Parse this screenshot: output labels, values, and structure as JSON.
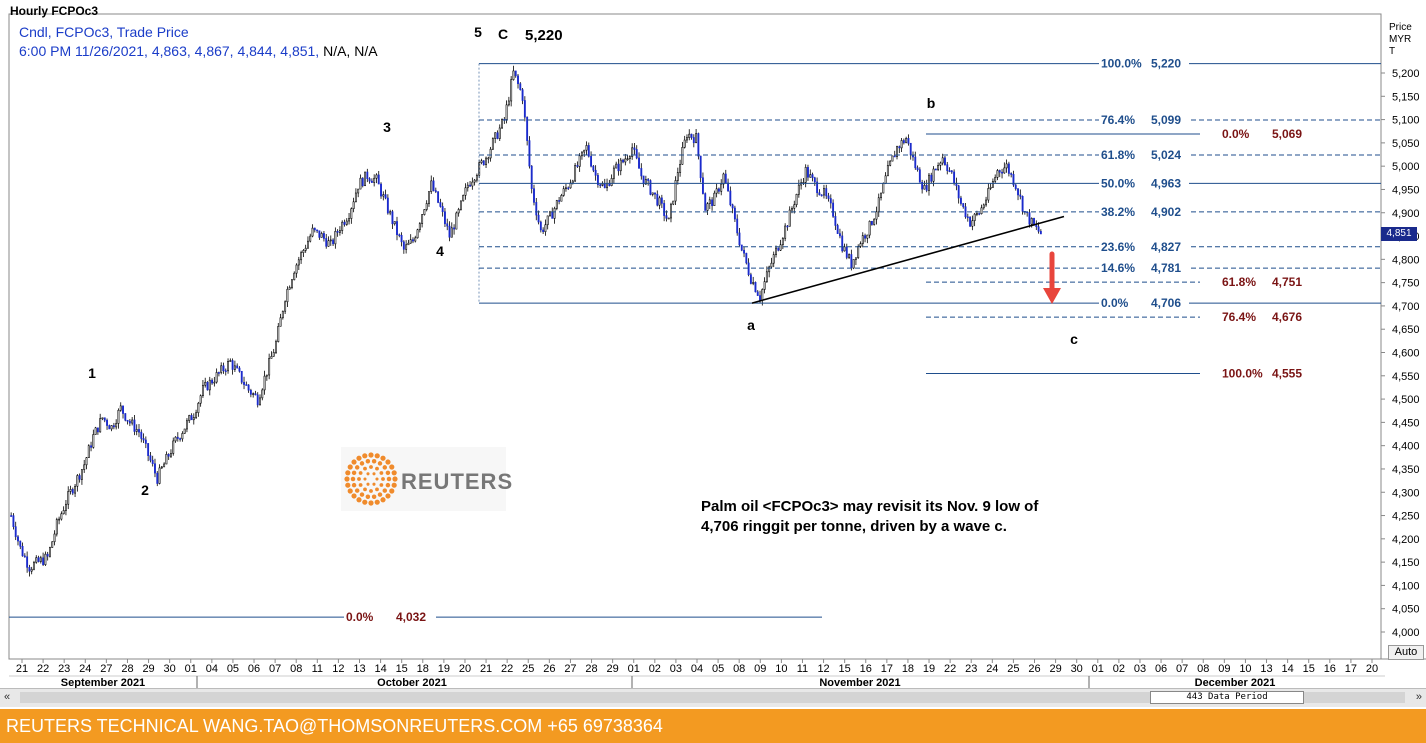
{
  "header": {
    "title": "Hourly FCPOc3",
    "series_label": "Cndl, FCPOc3, Trade Price",
    "ohlc_line": "6:00 PM 11/26/2021, 4,863, 4,867, 4,844, 4,851,",
    "na_values": "N/A, N/A"
  },
  "price_axis": {
    "title_line1": "Price",
    "title_line2": "MYR",
    "title_line3": "T",
    "last_value": "4,851",
    "auto_label": "Auto"
  },
  "scrollbar": {
    "left_arrow": "«",
    "right_arrow": "»",
    "data_period": "443 Data Period"
  },
  "watermark": {
    "text": "REUTERS"
  },
  "note": {
    "line1": "Palm oil <FCPOc3> may revisit its Nov. 9 low of",
    "line2": "4,706 ringgit per tonne, driven by a wave c."
  },
  "footer": {
    "text": "REUTERS TECHNICAL  WANG.TAO@THOMSONREUTERS.COM  +65 69738364"
  },
  "colors": {
    "fib_blue": "#1f4e8c",
    "fib_red": "#7a1414",
    "candle_up": "#ffffff",
    "candle_down": "#1a2acc",
    "arrow": "#e8453c",
    "footer_bg": "#f39a21"
  },
  "chart_data": {
    "type": "candlestick",
    "y_axis": {
      "min": 4000,
      "max": 5220,
      "ticks": [
        "4,000",
        "4,050",
        "4,100",
        "4,150",
        "4,200",
        "4,250",
        "4,300",
        "4,350",
        "4,400",
        "4,450",
        "4,500",
        "4,550",
        "4,600",
        "4,650",
        "4,700",
        "4,750",
        "4,800",
        "4,850",
        "4,900",
        "4,950",
        "5,000",
        "5,050",
        "5,100",
        "5,150",
        "5,200"
      ]
    },
    "x_axis": {
      "day_labels": [
        "21",
        "22",
        "23",
        "24",
        "27",
        "28",
        "29",
        "30",
        "01",
        "04",
        "05",
        "06",
        "07",
        "08",
        "11",
        "12",
        "13",
        "14",
        "15",
        "18",
        "19",
        "20",
        "21",
        "22",
        "25",
        "26",
        "27",
        "28",
        "29",
        "01",
        "02",
        "03",
        "04",
        "05",
        "08",
        "09",
        "10",
        "11",
        "12",
        "15",
        "16",
        "17",
        "18",
        "19",
        "22",
        "23",
        "24",
        "25",
        "26",
        "29",
        "30",
        "01",
        "02",
        "03",
        "06",
        "07",
        "08",
        "09",
        "10",
        "13",
        "14",
        "15",
        "16",
        "17",
        "20"
      ],
      "month_labels": [
        "September 2021",
        "October 2021",
        "November 2021",
        "December 2021"
      ]
    },
    "wave_labels": [
      "1",
      "2",
      "3",
      "4",
      "5",
      "C",
      "a",
      "b",
      "c"
    ],
    "peak_label": "5,220",
    "fib_main": [
      {
        "label": "100.0%",
        "value": "5,220",
        "v": 5220,
        "style": "solid"
      },
      {
        "label": "76.4%",
        "value": "5,099",
        "v": 5099,
        "style": "dashed"
      },
      {
        "label": "61.8%",
        "value": "5,024",
        "v": 5024,
        "style": "dashed"
      },
      {
        "label": "50.0%",
        "value": "4,963",
        "v": 4963,
        "style": "solid"
      },
      {
        "label": "38.2%",
        "value": "4,902",
        "v": 4902,
        "style": "dashed"
      },
      {
        "label": "23.6%",
        "value": "4,827",
        "v": 4827,
        "style": "dashed"
      },
      {
        "label": "14.6%",
        "value": "4,781",
        "v": 4781,
        "style": "dashed"
      },
      {
        "label": "0.0%",
        "value": "4,706",
        "v": 4706,
        "style": "solid"
      }
    ],
    "fib_ext": [
      {
        "label": "0.0%",
        "value": "5,069",
        "v": 5069,
        "style": "solid"
      },
      {
        "label": "61.8%",
        "value": "4,751",
        "v": 4751,
        "style": "dashed"
      },
      {
        "label": "76.4%",
        "value": "4,676",
        "v": 4676,
        "style": "dashed"
      },
      {
        "label": "100.0%",
        "value": "4,555",
        "v": 4555,
        "style": "solid"
      }
    ],
    "low_line": {
      "label": "0.0%",
      "value": "4,032",
      "v": 4032
    },
    "trendline": {
      "from": 4706,
      "to": 4892
    },
    "ohlc_path": [
      4250,
      4180,
      4140,
      4150,
      4160,
      4230,
      4280,
      4320,
      4360,
      4420,
      4460,
      4440,
      4480,
      4450,
      4430,
      4380,
      4330,
      4370,
      4410,
      4440,
      4470,
      4520,
      4540,
      4560,
      4580,
      4550,
      4520,
      4500,
      4560,
      4620,
      4720,
      4780,
      4820,
      4860,
      4850,
      4830,
      4870,
      4900,
      4960,
      4980,
      4970,
      4920,
      4870,
      4820,
      4840,
      4900,
      4960,
      4910,
      4850,
      4900,
      4960,
      4990,
      5020,
      5060,
      5100,
      5200,
      5150,
      4950,
      4860,
      4890,
      4930,
      4960,
      5000,
      5040,
      4980,
      4950,
      4990,
      5010,
      5040,
      4980,
      4950,
      4920,
      4880,
      4990,
      5070,
      5060,
      4910,
      4930,
      4980,
      4900,
      4820,
      4760,
      4720,
      4780,
      4830,
      4880,
      4940,
      4990,
      4960,
      4940,
      4900,
      4830,
      4790,
      4840,
      4870,
      4920,
      4990,
      5040,
      5060,
      5000,
      4950,
      4990,
      5020,
      4980,
      4920,
      4880,
      4900,
      4940,
      4990,
      5000,
      4960,
      4900,
      4870,
      4851
    ]
  }
}
